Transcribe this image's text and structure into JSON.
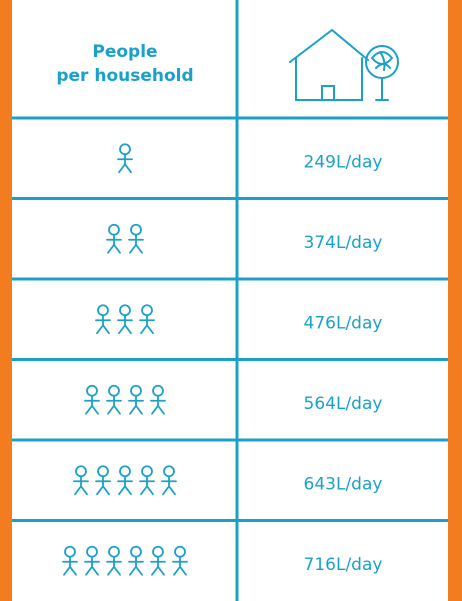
{
  "header": {
    "people_lines": [
      "People",
      "per household"
    ]
  },
  "rows": [
    {
      "people": 1,
      "usage": "249L/day"
    },
    {
      "people": 2,
      "usage": "374L/day"
    },
    {
      "people": 3,
      "usage": "476L/day"
    },
    {
      "people": 4,
      "usage": "564L/day"
    },
    {
      "people": 5,
      "usage": "643L/day"
    },
    {
      "people": 6,
      "usage": "716L/day"
    }
  ]
}
